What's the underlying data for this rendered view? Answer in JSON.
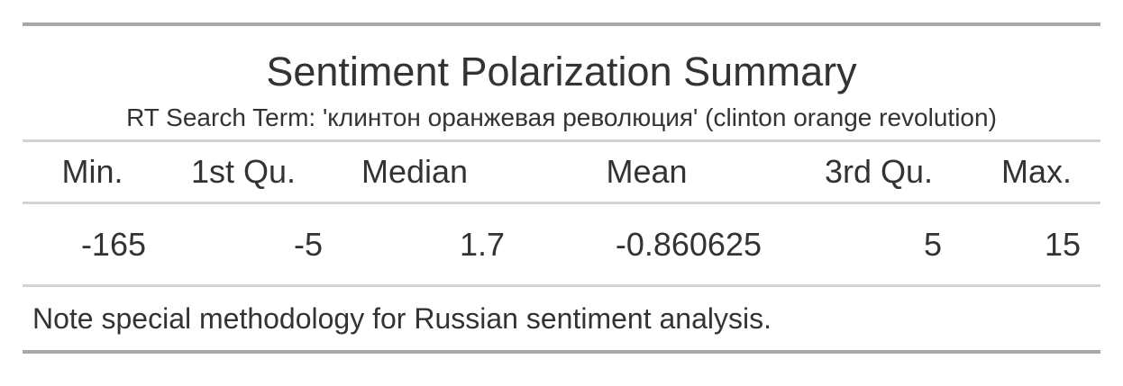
{
  "table": {
    "title": "Sentiment Polarization Summary",
    "subtitle": "RT Search Term: 'клинтон оранжевая революция' (clinton orange revolution)",
    "columns": [
      "Min.",
      "1st Qu.",
      "Median",
      "Mean",
      "3rd Qu.",
      "Max."
    ],
    "rows": [
      [
        "-165",
        "-5",
        "1.7",
        "-0.860625",
        "5",
        "15"
      ]
    ],
    "note": "Note special methodology for Russian sentiment analysis.",
    "colors": {
      "text": "#333333",
      "rule_heavy": "#a8a8a8",
      "rule_light": "#d3d3d3"
    }
  }
}
